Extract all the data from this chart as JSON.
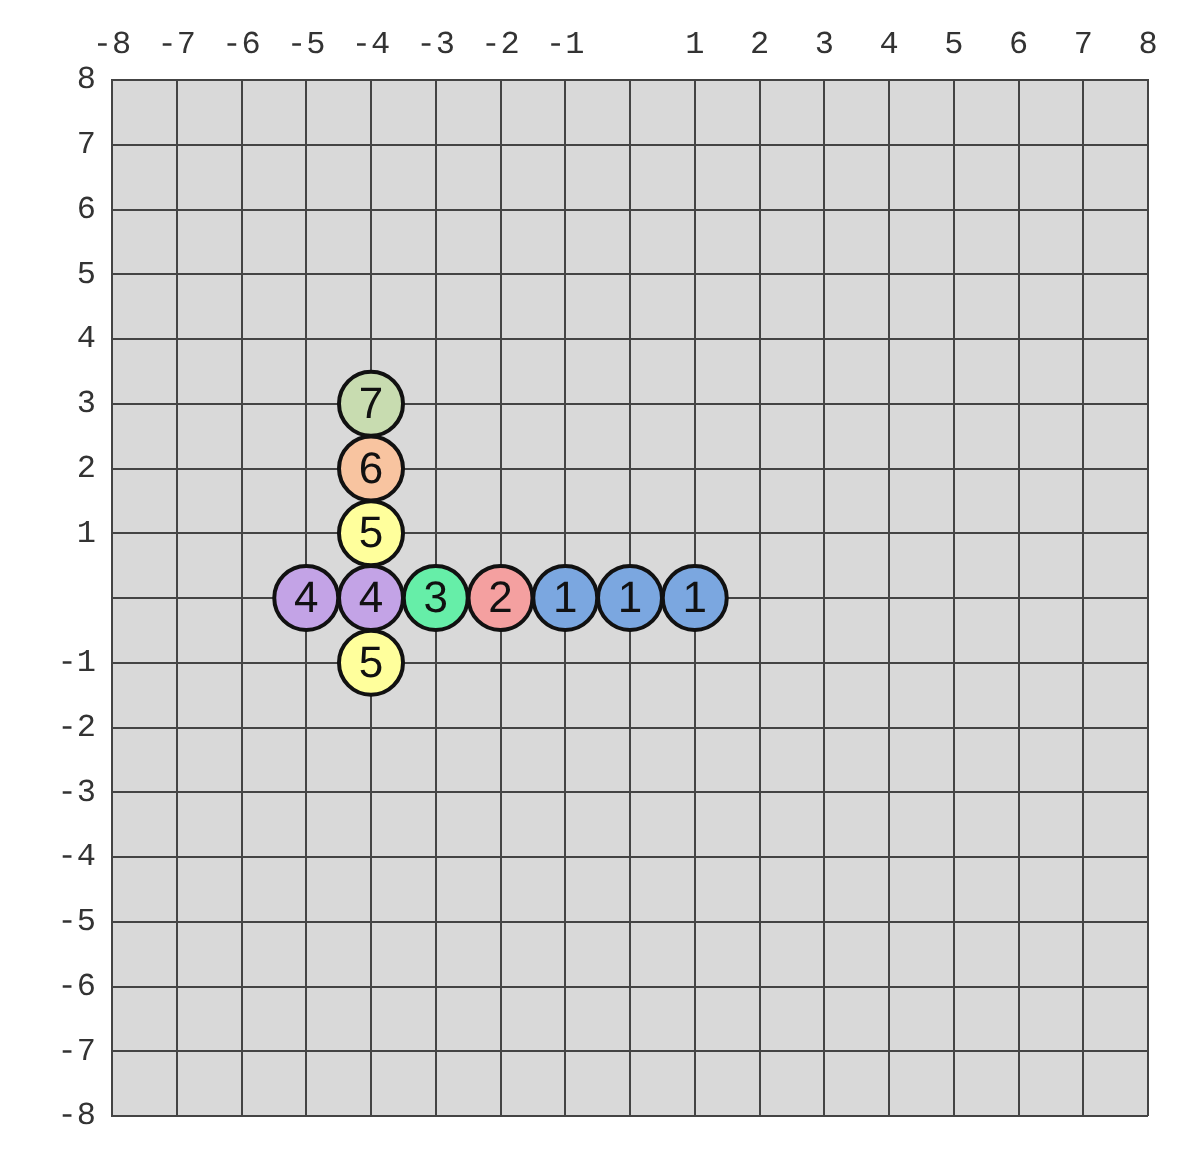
{
  "chart_data": {
    "type": "scatter",
    "marker": "circle",
    "grid": true,
    "legend": false,
    "xlim": [
      -8,
      8
    ],
    "ylim": [
      -8,
      8
    ],
    "xticks": [
      -8,
      -7,
      -6,
      -5,
      -4,
      -3,
      -2,
      -1,
      {
        "value": 0,
        "label": null
      },
      1,
      2,
      3,
      4,
      5,
      6,
      7,
      8
    ],
    "yticks": [
      -8,
      -7,
      -6,
      -5,
      -4,
      -3,
      -2,
      -1,
      {
        "value": 0,
        "label": null
      },
      1,
      2,
      3,
      4,
      5,
      6,
      7,
      8
    ],
    "series": [
      {
        "x": [
          1,
          0,
          -1,
          -2,
          -3,
          -4,
          -5,
          -4,
          -4,
          -4,
          -4
        ],
        "values": [
          0,
          0,
          0,
          0,
          0,
          0,
          0,
          1,
          -1,
          2,
          3
        ],
        "colors": [
          "#7ba7e0",
          "#7ba7e0",
          "#7ba7e0",
          "#f4a0a0",
          "#66eea8",
          "#c3a3e6",
          "#c3a3e6",
          "#ffff9c",
          "#ffff9c",
          "#f8c4a0",
          "#c8dcb0"
        ]
      }
    ],
    "annotations": [
      {
        "text": "1",
        "x": 1,
        "y": 0
      },
      {
        "text": "1",
        "x": 0,
        "y": 0
      },
      {
        "text": "1",
        "x": -1,
        "y": 0
      },
      {
        "text": "2",
        "x": -2,
        "y": 0
      },
      {
        "text": "3",
        "x": -3,
        "y": 0
      },
      {
        "text": "4",
        "x": -4,
        "y": 0
      },
      {
        "text": "4",
        "x": -5,
        "y": 0
      },
      {
        "text": "5",
        "x": -4,
        "y": 1
      },
      {
        "text": "5",
        "x": -4,
        "y": -1
      },
      {
        "text": "6",
        "x": -4,
        "y": 2
      },
      {
        "text": "7",
        "x": -4,
        "y": 3
      }
    ]
  }
}
